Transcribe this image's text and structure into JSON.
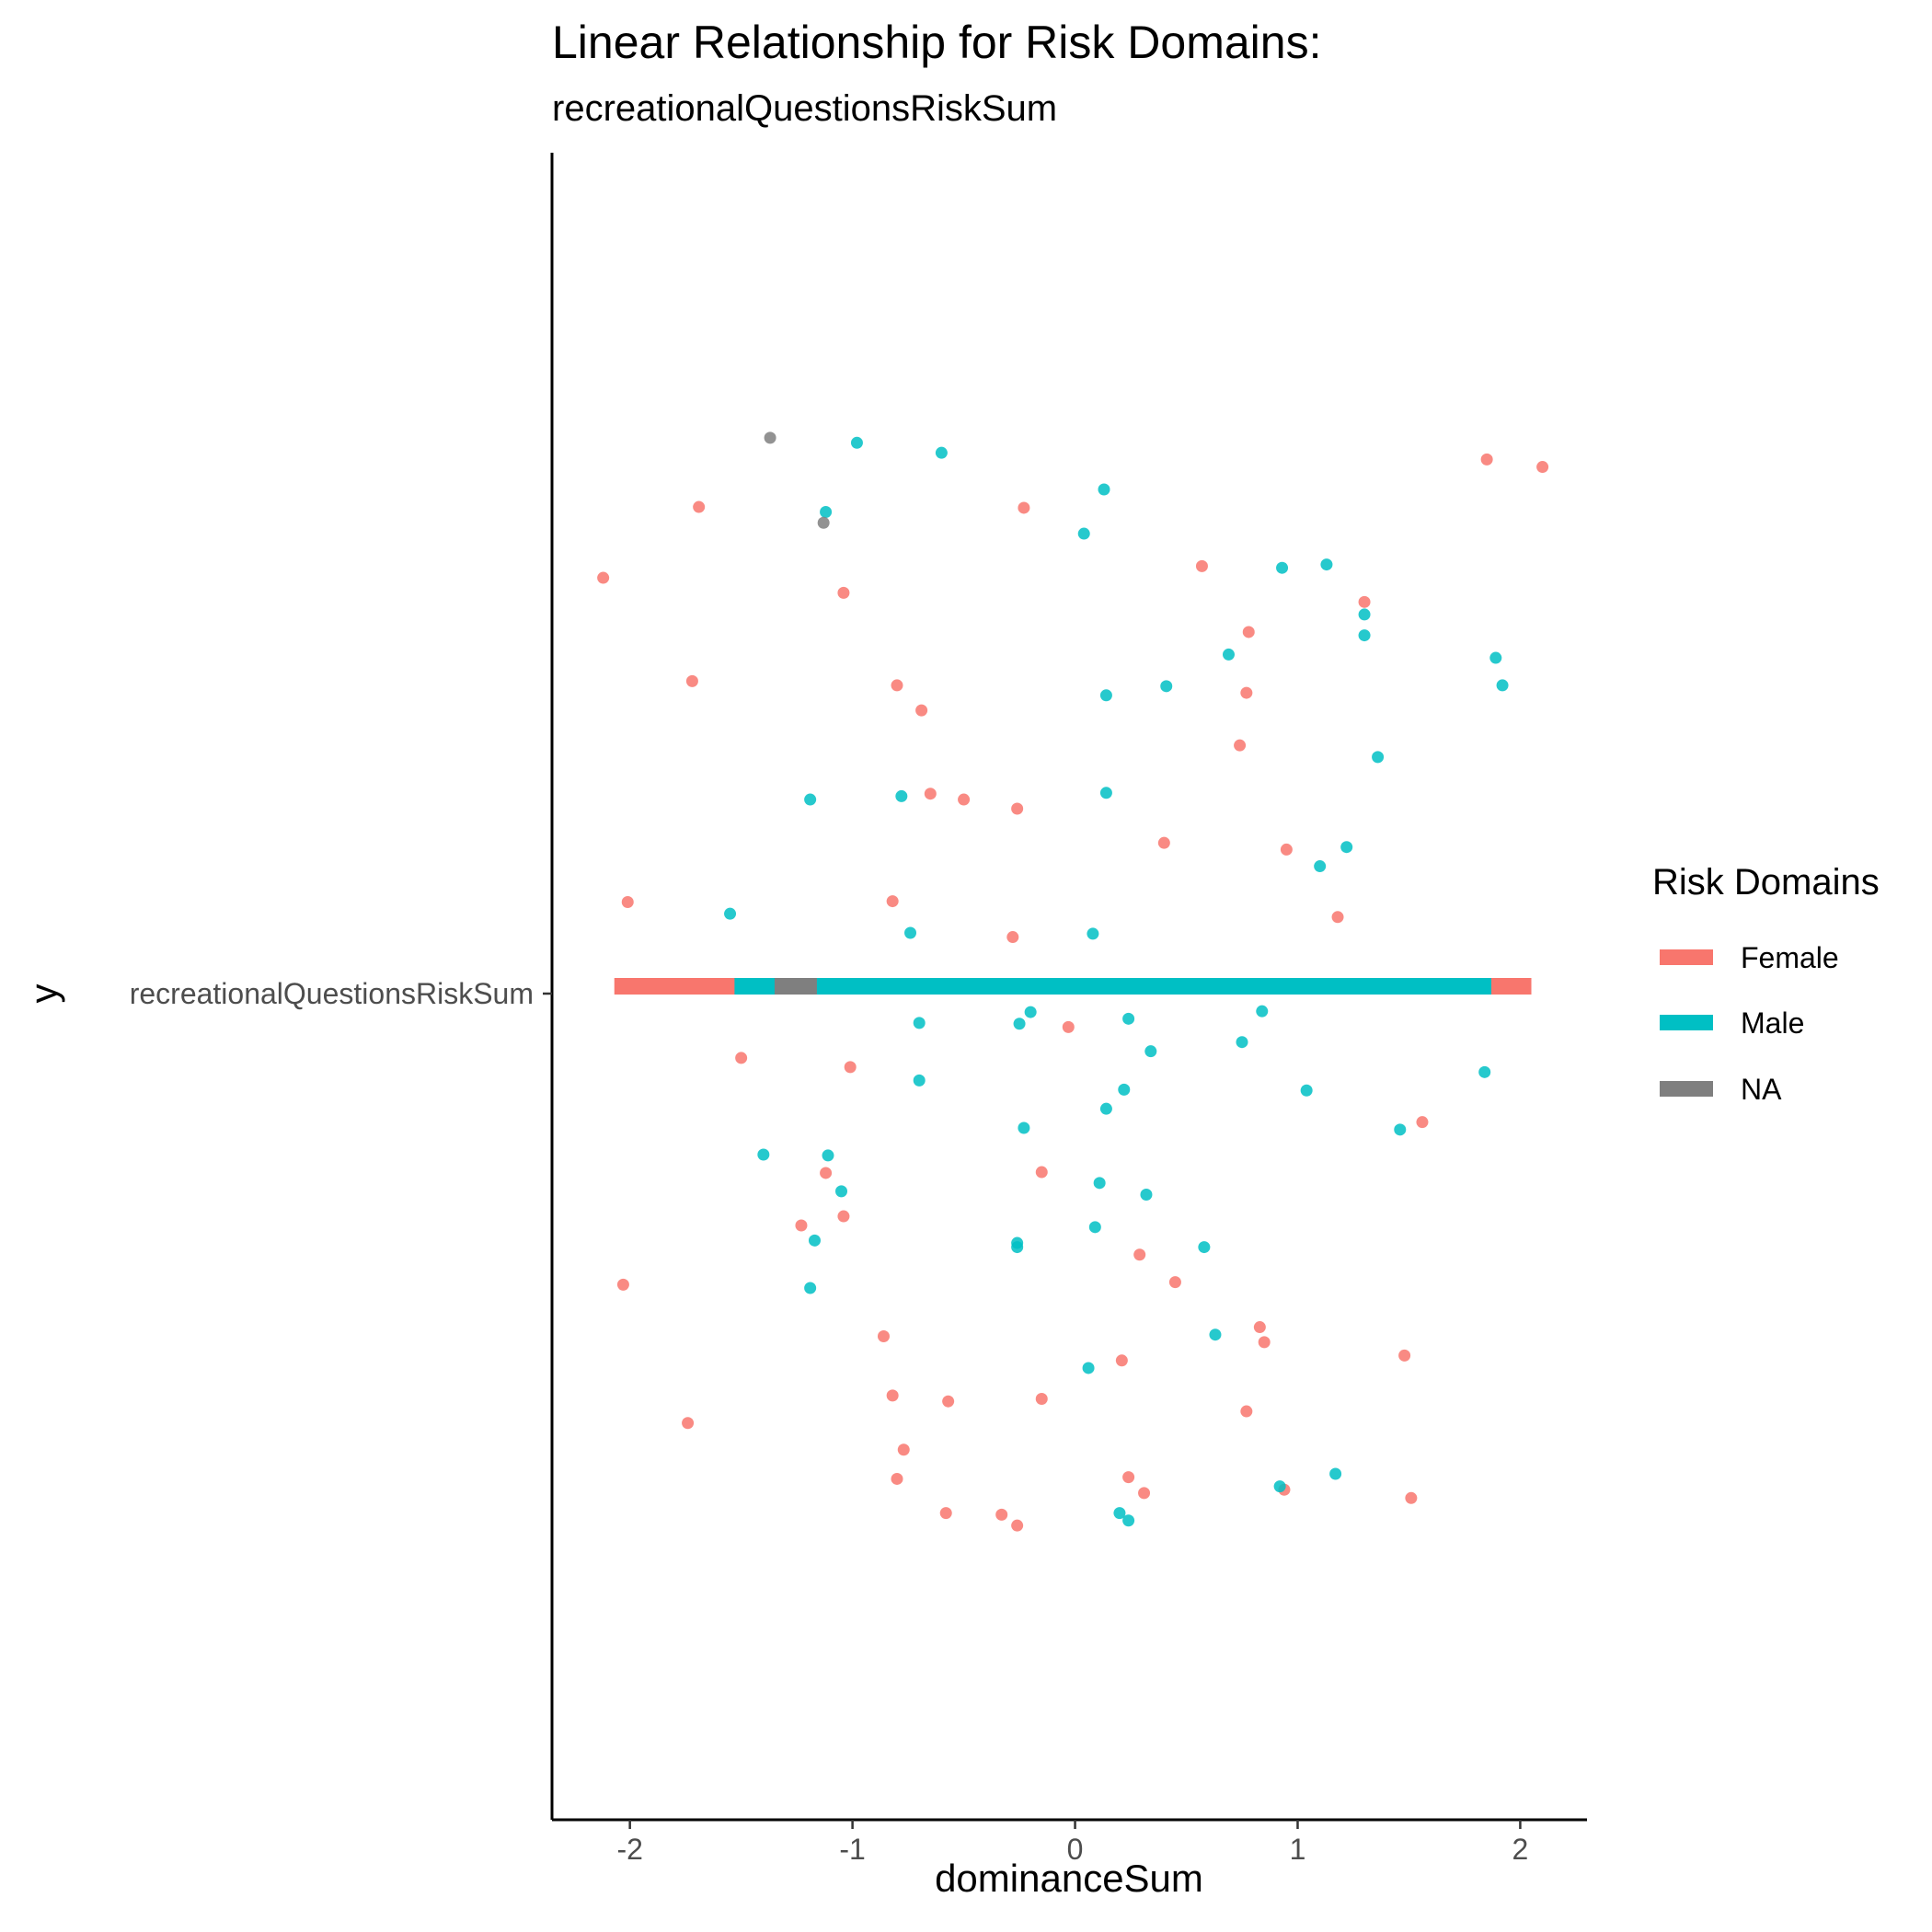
{
  "chart_data": {
    "type": "scatter",
    "title": "Linear Relationship for Risk Domains:",
    "subtitle": "recreationalQuestionsRiskSum",
    "xlabel": "dominanceSum",
    "ylabel": "y",
    "xlim": [
      -2.35,
      2.3
    ],
    "x_ticks": [
      "-2",
      "-1",
      "0",
      "1",
      "2"
    ],
    "x_tick_values": [
      -2,
      -1,
      0,
      1,
      2
    ],
    "y_categories": [
      "recreationalQuestionsRiskSum"
    ],
    "ylim": [
      -1,
      1
    ],
    "grid": false,
    "legend_position": "right",
    "legend": {
      "title": "Risk Domains",
      "entries": [
        {
          "name": "Female",
          "color": "#F8766D"
        },
        {
          "name": "Male",
          "color": "#00BFC4"
        },
        {
          "name": "NA",
          "color": "#7F7F7F"
        }
      ]
    },
    "range_bars": [
      {
        "name": "Female",
        "color": "#F8766D",
        "xmin": -2.07,
        "xmax": 2.05
      },
      {
        "name": "Male",
        "color": "#00BFC4",
        "xmin": -1.53,
        "xmax": 1.87
      },
      {
        "name": "NA",
        "color": "#7F7F7F",
        "xmin": -1.35,
        "xmax": -1.16
      }
    ],
    "series": [
      {
        "name": "Female",
        "color": "#F8766D",
        "points": [
          [
            1.85,
            0.632
          ],
          [
            2.1,
            0.623
          ],
          [
            -1.69,
            0.575
          ],
          [
            -0.23,
            0.574
          ],
          [
            -2.12,
            0.49
          ],
          [
            0.57,
            0.504
          ],
          [
            -1.04,
            0.472
          ],
          [
            1.3,
            0.461
          ],
          [
            0.78,
            0.425
          ],
          [
            -1.72,
            0.366
          ],
          [
            -0.8,
            0.361
          ],
          [
            0.77,
            0.352
          ],
          [
            -0.69,
            0.331
          ],
          [
            0.74,
            0.289
          ],
          [
            -0.65,
            0.231
          ],
          [
            -0.5,
            0.224
          ],
          [
            -0.26,
            0.213
          ],
          [
            0.4,
            0.172
          ],
          [
            0.95,
            0.164
          ],
          [
            -2.01,
            0.101
          ],
          [
            -0.82,
            0.102
          ],
          [
            1.18,
            0.083
          ],
          [
            -0.28,
            0.059
          ],
          [
            -0.03,
            -0.049
          ],
          [
            -1.5,
            -0.086
          ],
          [
            -1.01,
            -0.097
          ],
          [
            1.56,
            -0.163
          ],
          [
            -1.12,
            -0.224
          ],
          [
            -0.15,
            -0.223
          ],
          [
            -1.04,
            -0.276
          ],
          [
            -1.23,
            -0.287
          ],
          [
            0.29,
            -0.322
          ],
          [
            0.45,
            -0.355
          ],
          [
            -2.03,
            -0.358
          ],
          [
            0.83,
            -0.409
          ],
          [
            -0.86,
            -0.42
          ],
          [
            0.85,
            -0.427
          ],
          [
            1.48,
            -0.443
          ],
          [
            0.21,
            -0.449
          ],
          [
            -0.82,
            -0.491
          ],
          [
            -0.57,
            -0.498
          ],
          [
            -0.15,
            -0.495
          ],
          [
            0.77,
            -0.51
          ],
          [
            -1.74,
            -0.524
          ],
          [
            -0.77,
            -0.556
          ],
          [
            -0.8,
            -0.591
          ],
          [
            0.24,
            -0.589
          ],
          [
            0.31,
            -0.608
          ],
          [
            0.94,
            -0.604
          ],
          [
            1.51,
            -0.614
          ],
          [
            -0.58,
            -0.632
          ],
          [
            -0.33,
            -0.634
          ],
          [
            -0.26,
            -0.647
          ]
        ]
      },
      {
        "name": "Male",
        "color": "#00BFC4",
        "points": [
          [
            -0.98,
            0.652
          ],
          [
            -0.6,
            0.64
          ],
          [
            0.13,
            0.596
          ],
          [
            -1.12,
            0.569
          ],
          [
            0.04,
            0.543
          ],
          [
            0.93,
            0.502
          ],
          [
            1.13,
            0.506
          ],
          [
            1.3,
            0.446
          ],
          [
            1.3,
            0.421
          ],
          [
            0.69,
            0.398
          ],
          [
            1.89,
            0.394
          ],
          [
            1.92,
            0.361
          ],
          [
            0.14,
            0.349
          ],
          [
            0.41,
            0.36
          ],
          [
            1.36,
            0.275
          ],
          [
            -1.19,
            0.224
          ],
          [
            -0.78,
            0.228
          ],
          [
            0.14,
            0.232
          ],
          [
            1.22,
            0.167
          ],
          [
            1.1,
            0.144
          ],
          [
            -1.55,
            0.087
          ],
          [
            -0.74,
            0.064
          ],
          [
            0.08,
            0.063
          ],
          [
            -0.2,
            -0.031
          ],
          [
            -0.7,
            -0.044
          ],
          [
            -0.25,
            -0.045
          ],
          [
            0.24,
            -0.039
          ],
          [
            0.84,
            -0.03
          ],
          [
            0.75,
            -0.067
          ],
          [
            0.34,
            -0.078
          ],
          [
            1.84,
            -0.103
          ],
          [
            -0.7,
            -0.113
          ],
          [
            0.22,
            -0.124
          ],
          [
            1.04,
            -0.125
          ],
          [
            0.14,
            -0.147
          ],
          [
            -0.23,
            -0.17
          ],
          [
            1.46,
            -0.172
          ],
          [
            -1.4,
            -0.202
          ],
          [
            -1.11,
            -0.203
          ],
          [
            0.11,
            -0.236
          ],
          [
            0.32,
            -0.25
          ],
          [
            -1.05,
            -0.246
          ],
          [
            0.09,
            -0.289
          ],
          [
            -1.17,
            -0.305
          ],
          [
            -0.26,
            -0.308
          ],
          [
            -0.26,
            -0.313
          ],
          [
            0.58,
            -0.313
          ],
          [
            -1.19,
            -0.362
          ],
          [
            0.63,
            -0.418
          ],
          [
            0.06,
            -0.458
          ],
          [
            1.17,
            -0.585
          ],
          [
            0.92,
            -0.6
          ],
          [
            0.2,
            -0.632
          ],
          [
            0.24,
            -0.641
          ]
        ]
      },
      {
        "name": "NA",
        "color": "#7F7F7F",
        "points": [
          [
            -1.37,
            0.658
          ],
          [
            -1.13,
            0.556
          ]
        ]
      }
    ]
  }
}
